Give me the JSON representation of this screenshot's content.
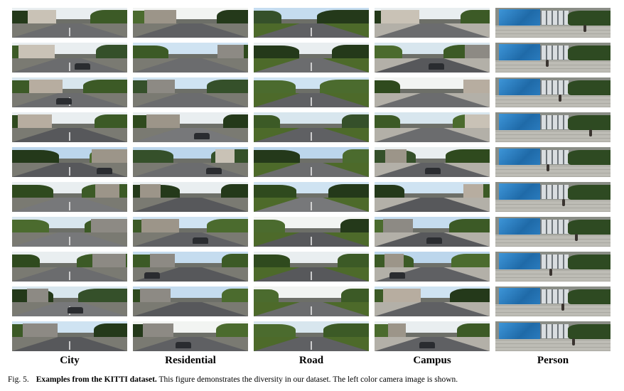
{
  "figure": {
    "categories": [
      "City",
      "Residential",
      "Road",
      "Campus",
      "Person"
    ],
    "rows_per_category": 10,
    "caption": {
      "figure_number": "Fig. 5.",
      "bold_text": "Examples from the KITTI dataset.",
      "text": " This figure demonstrates the diversity in our dataset. The left color camera image is shown."
    }
  }
}
